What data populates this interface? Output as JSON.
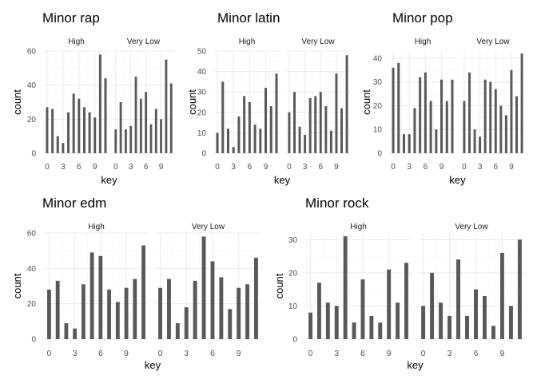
{
  "chart_data": [
    {
      "type": "bar",
      "title": "Minor rap",
      "xlabel": "key",
      "ylabel": "count",
      "ylim": [
        0,
        60
      ],
      "y_ticks": [
        0,
        20,
        40,
        60
      ],
      "x_ticks": [
        0,
        3,
        6,
        9
      ],
      "xlim": [
        -0.6,
        11.6
      ],
      "grid": true,
      "facets": [
        {
          "label": "High",
          "x": [
            0,
            1,
            2,
            3,
            4,
            5,
            6,
            7,
            8,
            9,
            10,
            11
          ],
          "values": [
            27,
            26,
            10,
            6,
            24,
            35,
            32,
            27,
            24,
            21,
            58,
            44
          ]
        },
        {
          "label": "Very Low",
          "x": [
            0,
            1,
            2,
            3,
            4,
            5,
            6,
            7,
            8,
            9,
            10,
            11
          ],
          "values": [
            14,
            30,
            14,
            16,
            45,
            32,
            36,
            17,
            26,
            20,
            55,
            41
          ]
        }
      ]
    },
    {
      "type": "bar",
      "title": "Minor latin",
      "xlabel": "key",
      "ylabel": "count",
      "ylim": [
        0,
        50
      ],
      "y_ticks": [
        0,
        10,
        20,
        30,
        40,
        50
      ],
      "x_ticks": [
        0,
        3,
        6,
        9
      ],
      "xlim": [
        -0.6,
        11.6
      ],
      "grid": true,
      "facets": [
        {
          "label": "High",
          "x": [
            0,
            1,
            2,
            3,
            4,
            5,
            6,
            7,
            8,
            9,
            10,
            11
          ],
          "values": [
            10,
            35,
            12,
            3,
            18,
            28,
            25,
            14,
            12,
            32,
            23,
            39
          ]
        },
        {
          "label": "Very Low",
          "x": [
            0,
            1,
            2,
            3,
            4,
            5,
            6,
            7,
            8,
            9,
            10,
            11
          ],
          "values": [
            20,
            30,
            13,
            9,
            27,
            28,
            30,
            23,
            11,
            39,
            22,
            48
          ]
        }
      ]
    },
    {
      "type": "bar",
      "title": "Minor pop",
      "xlabel": "key",
      "ylabel": "count",
      "ylim": [
        0,
        43
      ],
      "y_ticks": [
        0,
        10,
        20,
        30,
        40
      ],
      "x_ticks": [
        0,
        3,
        6,
        9
      ],
      "xlim": [
        -0.6,
        11.6
      ],
      "grid": true,
      "facets": [
        {
          "label": "High",
          "x": [
            0,
            1,
            2,
            3,
            4,
            5,
            6,
            7,
            8,
            9,
            10,
            11
          ],
          "values": [
            36,
            38,
            8,
            8,
            19,
            32,
            34,
            22,
            10,
            31,
            22,
            31
          ]
        },
        {
          "label": "Very Low",
          "x": [
            0,
            1,
            2,
            3,
            4,
            5,
            6,
            7,
            8,
            9,
            10,
            11
          ],
          "values": [
            22,
            34,
            10,
            7,
            31,
            30,
            27,
            20,
            16,
            35,
            24,
            42
          ]
        }
      ]
    },
    {
      "type": "bar",
      "title": "Minor edm",
      "xlabel": "key",
      "ylabel": "count",
      "ylim": [
        0,
        60
      ],
      "y_ticks": [
        0,
        20,
        40,
        60
      ],
      "x_ticks": [
        0,
        3,
        6,
        9
      ],
      "xlim": [
        -0.6,
        11.6
      ],
      "grid": true,
      "facets": [
        {
          "label": "High",
          "x": [
            0,
            1,
            2,
            3,
            4,
            5,
            6,
            7,
            8,
            9,
            10,
            11
          ],
          "values": [
            28,
            33,
            9,
            6,
            31,
            49,
            47,
            28,
            21,
            29,
            34,
            53
          ]
        },
        {
          "label": "Very Low",
          "x": [
            0,
            1,
            2,
            3,
            4,
            5,
            6,
            7,
            8,
            9,
            10,
            11
          ],
          "values": [
            29,
            34,
            9,
            18,
            33,
            58,
            44,
            35,
            17,
            29,
            31,
            46
          ]
        }
      ]
    },
    {
      "type": "bar",
      "title": "Minor rock",
      "xlabel": "key",
      "ylabel": "count",
      "ylim": [
        0,
        32
      ],
      "y_ticks": [
        0,
        10,
        20,
        30
      ],
      "x_ticks": [
        0,
        3,
        6,
        9
      ],
      "xlim": [
        -0.6,
        11.6
      ],
      "grid": true,
      "facets": [
        {
          "label": "High",
          "x": [
            0,
            1,
            2,
            3,
            4,
            5,
            6,
            7,
            8,
            9,
            10,
            11
          ],
          "values": [
            8,
            17,
            11,
            10,
            31,
            5,
            18,
            7,
            5,
            21,
            11,
            23
          ]
        },
        {
          "label": "Very Low",
          "x": [
            0,
            1,
            2,
            3,
            4,
            5,
            6,
            7,
            8,
            9,
            10,
            11
          ],
          "values": [
            10,
            20,
            11,
            7,
            24,
            7,
            15,
            13,
            4,
            26,
            10,
            30
          ]
        }
      ]
    }
  ],
  "style": {
    "bar_color": "#595959",
    "grid_major_color": "#ebebeb",
    "grid_minor_color": "#f5f5f5",
    "background": "#ffffff"
  }
}
